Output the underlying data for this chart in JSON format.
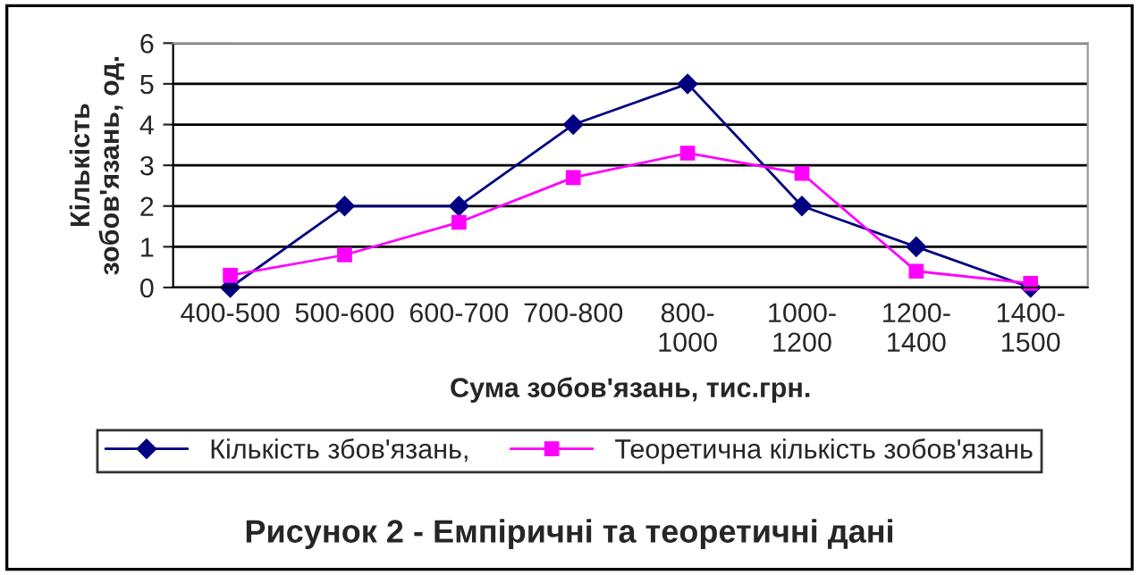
{
  "chart_data": {
    "type": "line",
    "title": "Рисунок 2 - Емпіричні та теоретичні дані",
    "xlabel": "Сума зобов'язань, тис.грн.",
    "ylabel": "Кількість зобов'язань, од.",
    "categories": [
      "400-500",
      "500-600",
      "600-700",
      "700-800",
      "800-1000",
      "1000-1200",
      "1200-1400",
      "1400-1500"
    ],
    "series": [
      {
        "name": "Кількість збов'язань,",
        "color": "#000080",
        "marker": "diamond",
        "values": [
          0,
          2,
          2,
          4,
          5,
          2,
          1,
          0
        ]
      },
      {
        "name": "Теоретична кількість зобов'язань",
        "color": "#ff00ff",
        "marker": "square",
        "values": [
          0.3,
          0.8,
          1.6,
          2.7,
          3.3,
          2.8,
          0.4,
          0.1
        ]
      }
    ],
    "ylim": [
      0,
      6
    ],
    "yticks": [
      0,
      1,
      2,
      3,
      4,
      5,
      6
    ],
    "grid": "y",
    "legend": "bottom",
    "line_style": "solid"
  }
}
